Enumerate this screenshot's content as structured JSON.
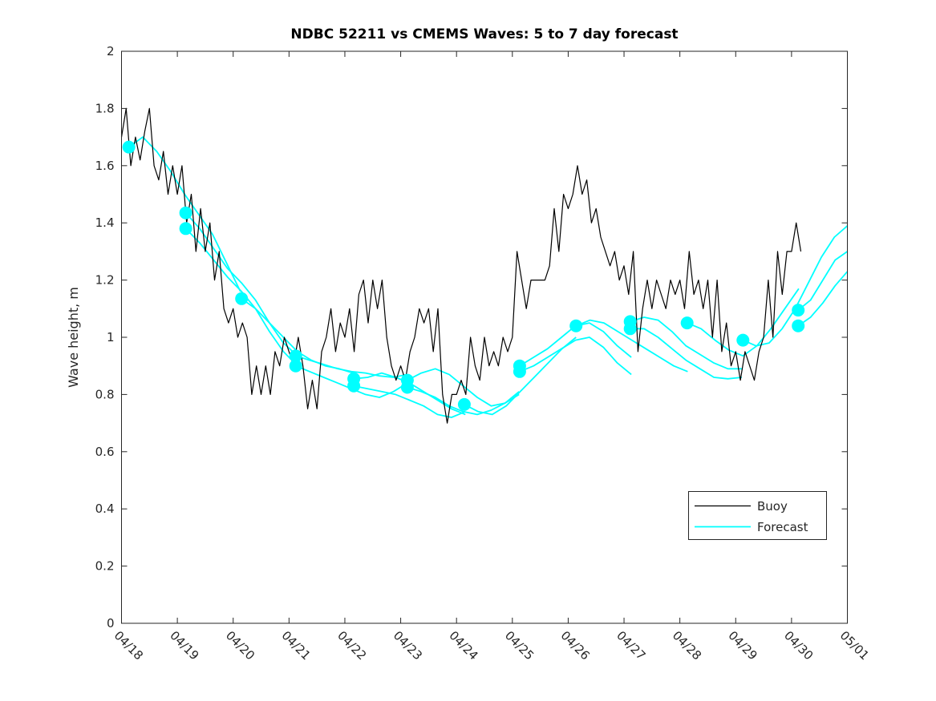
{
  "chart_data": {
    "type": "line",
    "title": "NDBC 52211 vs CMEMS Waves: 5 to 7 day forecast",
    "xlabel": "",
    "ylabel": "Wave height, m",
    "ylim": [
      0,
      2
    ],
    "y_tick_labels": [
      "0",
      "0.2",
      "0.4",
      "0.6",
      "0.8",
      "1",
      "1.2",
      "1.4",
      "1.6",
      "1.8",
      "2"
    ],
    "x_axis_days": [
      0,
      13
    ],
    "x_tick_labels": [
      "04/18",
      "04/19",
      "04/20",
      "04/21",
      "04/22",
      "04/23",
      "04/24",
      "04/25",
      "04/26",
      "04/27",
      "04/28",
      "04/29",
      "04/30",
      "05/01"
    ],
    "grid": false,
    "colors": {
      "buoy": "#000000",
      "forecast": "#00ffff",
      "axis": "#262626",
      "background": "#ffffff"
    },
    "legend": {
      "location": "inside-lower-right",
      "entries": [
        {
          "label": "Buoy",
          "color": "#000000"
        },
        {
          "label": "Forecast",
          "color": "#00ffff"
        }
      ]
    },
    "buoy_series": {
      "label": "Buoy",
      "units": "m",
      "start_day": 0,
      "step_days": 0.083333,
      "values": [
        1.7,
        1.8,
        1.6,
        1.7,
        1.62,
        1.72,
        1.8,
        1.6,
        1.55,
        1.65,
        1.5,
        1.6,
        1.5,
        1.6,
        1.4,
        1.5,
        1.3,
        1.45,
        1.3,
        1.4,
        1.2,
        1.3,
        1.1,
        1.05,
        1.1,
        1.0,
        1.05,
        1.0,
        0.8,
        0.9,
        0.8,
        0.9,
        0.8,
        0.95,
        0.9,
        1.0,
        0.95,
        0.9,
        1.0,
        0.9,
        0.75,
        0.85,
        0.75,
        0.95,
        1.0,
        1.1,
        0.95,
        1.05,
        1.0,
        1.1,
        0.95,
        1.15,
        1.2,
        1.05,
        1.2,
        1.1,
        1.2,
        1.0,
        0.9,
        0.85,
        0.9,
        0.85,
        0.95,
        1.0,
        1.1,
        1.05,
        1.1,
        0.95,
        1.1,
        0.8,
        0.7,
        0.8,
        0.8,
        0.85,
        0.8,
        1.0,
        0.9,
        0.85,
        1.0,
        0.9,
        0.95,
        0.9,
        1.0,
        0.95,
        1.0,
        1.3,
        1.2,
        1.1,
        1.2,
        1.2,
        1.2,
        1.2,
        1.25,
        1.45,
        1.3,
        1.5,
        1.45,
        1.5,
        1.6,
        1.5,
        1.55,
        1.4,
        1.45,
        1.35,
        1.3,
        1.25,
        1.3,
        1.2,
        1.25,
        1.15,
        1.3,
        0.95,
        1.1,
        1.2,
        1.1,
        1.2,
        1.15,
        1.1,
        1.2,
        1.15,
        1.2,
        1.1,
        1.3,
        1.15,
        1.2,
        1.1,
        1.2,
        1.0,
        1.2,
        0.95,
        1.05,
        0.9,
        0.95,
        0.85,
        0.95,
        0.9,
        0.85,
        0.95,
        1.0,
        1.2,
        1.0,
        1.3,
        1.15,
        1.3,
        1.3,
        1.4,
        1.3
      ]
    },
    "forecast_series": {
      "label": "Forecast",
      "units": "m",
      "segments": [
        {
          "start_day": 0.13,
          "step_days": 0.25,
          "values": [
            1.665,
            1.7,
            1.65,
            1.58,
            1.5,
            1.43,
            1.36,
            1.26,
            1.16
          ]
        },
        {
          "start_day": 1.15,
          "step_days": 0.25,
          "values": [
            1.435,
            1.38,
            1.31,
            1.24,
            1.19,
            1.13,
            1.05,
            0.98,
            0.935
          ]
        },
        {
          "start_day": 1.15,
          "step_days": 0.25,
          "values": [
            1.38,
            1.33,
            1.27,
            1.21,
            1.16,
            1.1,
            1.02,
            0.95,
            0.9
          ]
        },
        {
          "start_day": 2.15,
          "step_days": 0.25,
          "values": [
            1.135,
            1.1,
            1.05,
            1.0,
            0.95,
            0.92,
            0.9,
            0.89,
            0.875
          ]
        },
        {
          "start_day": 3.12,
          "step_days": 0.25,
          "values": [
            0.935,
            0.92,
            0.905,
            0.89,
            0.88,
            0.875,
            0.865,
            0.86,
            0.87
          ]
        },
        {
          "start_day": 3.12,
          "step_days": 0.25,
          "values": [
            0.9,
            0.88,
            0.86,
            0.84,
            0.82,
            0.8,
            0.79,
            0.81,
            0.84
          ]
        },
        {
          "start_day": 4.16,
          "step_days": 0.25,
          "values": [
            0.855,
            0.86,
            0.875,
            0.86,
            0.84,
            0.81,
            0.78,
            0.75,
            0.73
          ]
        },
        {
          "start_day": 4.16,
          "step_days": 0.25,
          "values": [
            0.83,
            0.82,
            0.81,
            0.8,
            0.78,
            0.76,
            0.73,
            0.72,
            0.74
          ]
        },
        {
          "start_day": 5.12,
          "step_days": 0.25,
          "values": [
            0.85,
            0.875,
            0.89,
            0.87,
            0.83,
            0.79,
            0.76,
            0.77,
            0.8
          ]
        },
        {
          "start_day": 5.12,
          "step_days": 0.25,
          "values": [
            0.825,
            0.81,
            0.79,
            0.76,
            0.74,
            0.73,
            0.745,
            0.77,
            0.81
          ]
        },
        {
          "start_day": 6.14,
          "step_days": 0.25,
          "values": [
            0.765,
            0.74,
            0.73,
            0.76,
            0.81,
            0.86,
            0.91,
            0.96,
            1.0
          ]
        },
        {
          "start_day": 7.13,
          "step_days": 0.25,
          "values": [
            0.9,
            0.93,
            0.96,
            1.0,
            1.04,
            1.05,
            1.02,
            0.97,
            0.93
          ]
        },
        {
          "start_day": 7.13,
          "step_days": 0.25,
          "values": [
            0.88,
            0.9,
            0.93,
            0.96,
            0.99,
            1.0,
            0.965,
            0.91,
            0.87
          ]
        },
        {
          "start_day": 8.14,
          "step_days": 0.25,
          "values": [
            1.04,
            1.06,
            1.05,
            1.02,
            0.99,
            0.96,
            0.93,
            0.9,
            0.88
          ]
        },
        {
          "start_day": 9.11,
          "step_days": 0.25,
          "values": [
            1.055,
            1.07,
            1.06,
            1.02,
            0.97,
            0.94,
            0.91,
            0.89,
            0.89
          ]
        },
        {
          "start_day": 9.11,
          "step_days": 0.25,
          "values": [
            1.03,
            1.03,
            1.0,
            0.96,
            0.92,
            0.89,
            0.86,
            0.855,
            0.86
          ]
        },
        {
          "start_day": 10.13,
          "step_days": 0.25,
          "values": [
            1.05,
            1.03,
            0.99,
            0.955,
            0.935,
            0.97,
            1.03,
            1.1,
            1.17
          ]
        },
        {
          "start_day": 11.13,
          "step_days": 0.234,
          "values": [
            0.99,
            0.97,
            0.98,
            1.03,
            1.1,
            1.19,
            1.28,
            1.35,
            1.39
          ]
        },
        {
          "start_day": 12.12,
          "step_days": 0.22,
          "values": [
            1.095,
            1.13,
            1.2,
            1.27,
            1.3
          ]
        },
        {
          "start_day": 12.12,
          "step_days": 0.22,
          "values": [
            1.04,
            1.07,
            1.12,
            1.18,
            1.23
          ]
        }
      ],
      "start_markers": [
        [
          0.13,
          1.665
        ],
        [
          1.15,
          1.435
        ],
        [
          1.15,
          1.38
        ],
        [
          2.15,
          1.135
        ],
        [
          3.12,
          0.935
        ],
        [
          3.12,
          0.9
        ],
        [
          4.16,
          0.855
        ],
        [
          4.16,
          0.83
        ],
        [
          5.12,
          0.85
        ],
        [
          5.12,
          0.825
        ],
        [
          6.14,
          0.765
        ],
        [
          7.13,
          0.9
        ],
        [
          7.13,
          0.88
        ],
        [
          8.14,
          1.04
        ],
        [
          9.11,
          1.055
        ],
        [
          9.11,
          1.03
        ],
        [
          10.13,
          1.05
        ],
        [
          11.13,
          0.99
        ],
        [
          12.12,
          1.095
        ],
        [
          12.12,
          1.04
        ]
      ]
    }
  }
}
